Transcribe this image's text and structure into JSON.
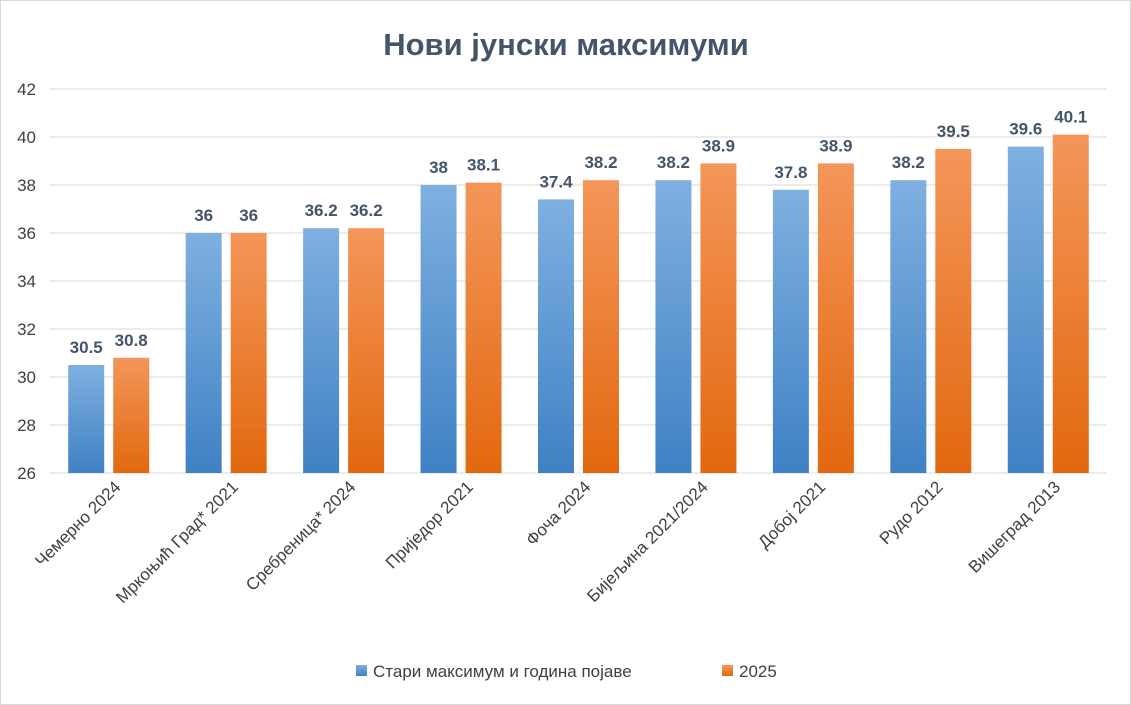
{
  "chart_data": {
    "type": "bar",
    "title": "Нови јунски максимуми",
    "categories": [
      "Чемерно 2024",
      "Мркоњић Град* 2021",
      "Сребреница* 2024",
      "Приједор 2021",
      "Фоча 2024",
      "Бијељина 2021/2024",
      "Добој 2021",
      "Рудо 2012",
      "Вишеград 2013"
    ],
    "series": [
      {
        "name": "Стари максимум и година појаве",
        "values": [
          30.5,
          36,
          36.2,
          38,
          37.4,
          38.2,
          37.8,
          38.2,
          39.6
        ],
        "color": "#5b9bd5"
      },
      {
        "name": "2025",
        "values": [
          30.8,
          36,
          36.2,
          38.1,
          38.2,
          38.9,
          38.9,
          39.5,
          40.1
        ],
        "color": "#ed7d31"
      }
    ],
    "ylim": [
      26,
      42
    ],
    "yticks": [
      26,
      28,
      30,
      32,
      34,
      36,
      38,
      40,
      42
    ],
    "xlabel": "",
    "ylabel": "",
    "grid": true,
    "legend": "bottom"
  }
}
